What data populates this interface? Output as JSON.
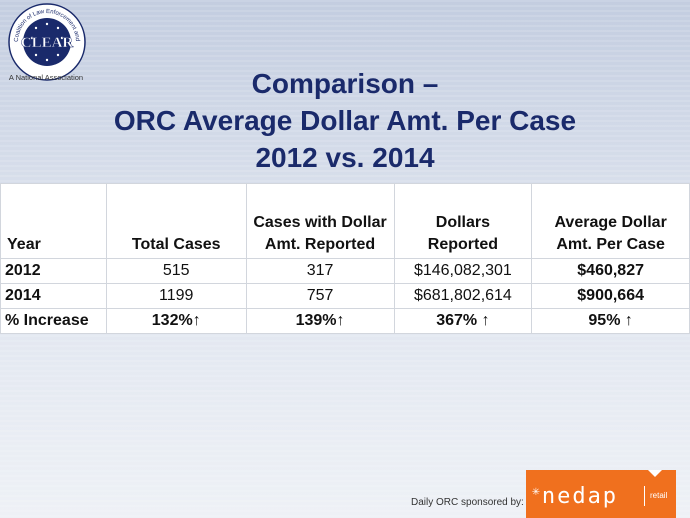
{
  "logo": {
    "arc_text": "Coalition of Law Enforcement and Retail",
    "center_text": "CLEAR",
    "subtitle": "A National Association"
  },
  "title": {
    "line1": "Comparison –",
    "line2": "ORC Average Dollar Amt. Per Case",
    "line3": "2012 vs. 2014"
  },
  "table": {
    "headers": {
      "year": "Year",
      "total_cases": "Total Cases",
      "cases_with_dollar_1": "Cases with Dollar",
      "cases_with_dollar_2": "Amt. Reported",
      "dollars_1": "Dollars",
      "dollars_2": "Reported",
      "avg_1": "Average Dollar",
      "avg_2": "Amt. Per Case"
    },
    "rows": [
      {
        "label": "2012",
        "total_cases": "515",
        "cases_with_dollar": "317",
        "dollars_reported": "$146,082,301",
        "avg_per_case": "$460,827"
      },
      {
        "label": "2014",
        "total_cases": "1199",
        "cases_with_dollar": "757",
        "dollars_reported": "$681,802,614",
        "avg_per_case": "$900,664"
      },
      {
        "label": "% Increase",
        "total_cases": "132%↑",
        "cases_with_dollar": "139%↑",
        "dollars_reported": "367% ↑",
        "avg_per_case": "95% ↑"
      }
    ]
  },
  "sponsor": {
    "text": "Daily ORC sponsored by:",
    "brand": "nedap",
    "brand_sub": "retail",
    "color": "#f0701e"
  }
}
